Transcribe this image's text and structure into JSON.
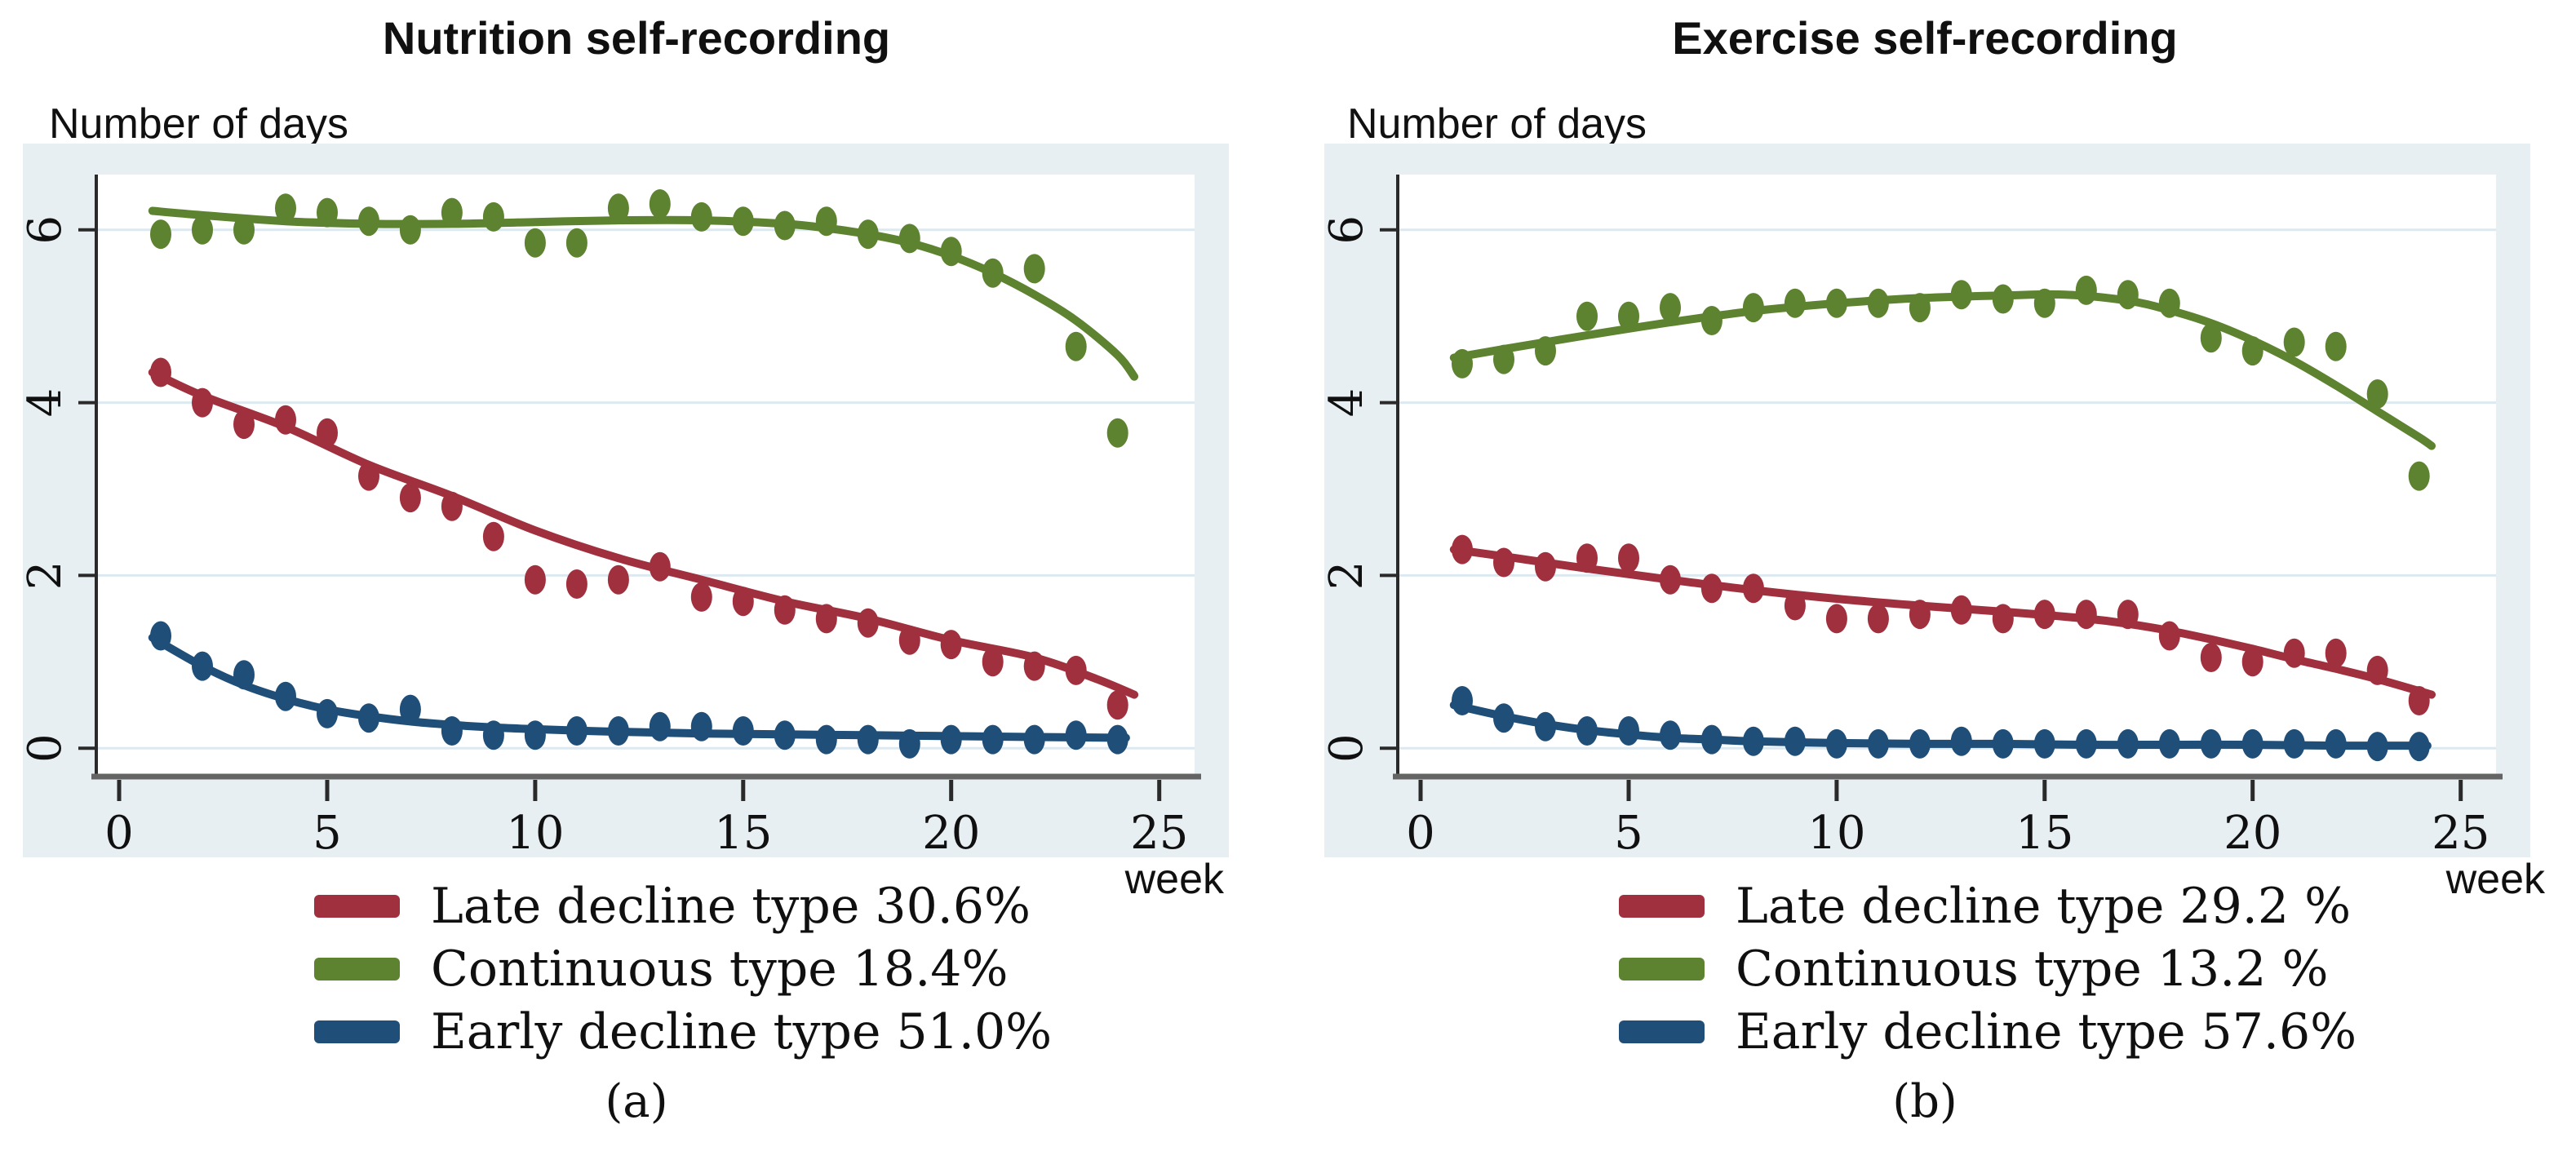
{
  "figure": {
    "panels": [
      {
        "title": "Nutrition self-recording",
        "y_axis_title": "Number of days",
        "x_axis_title": "week",
        "caption": "(a)",
        "legend": [
          {
            "series": "late_decline",
            "label": "Late decline type 30.6%"
          },
          {
            "series": "continuous",
            "label": "Continuous type 18.4%"
          },
          {
            "series": "early_decline",
            "label": "Early decline type 51.0%"
          }
        ]
      },
      {
        "title": "Exercise self-recording",
        "y_axis_title": "Number of days",
        "x_axis_title": "week",
        "caption": "(b)",
        "legend": [
          {
            "series": "late_decline",
            "label": "Late decline type 29.2 %"
          },
          {
            "series": "continuous",
            "label": "Continuous type 13.2 %"
          },
          {
            "series": "early_decline",
            "label": "Early decline type 57.6%"
          }
        ]
      }
    ],
    "colors": {
      "late_decline": "#a1303e",
      "continuous": "#5d8230",
      "early_decline": "#1f4e78",
      "panel_bg": "#e8eff3",
      "plot_bg": "#ffffff",
      "grid": "#dde9f0",
      "axis": "#2a2a2a",
      "x_axis_line": "#646464",
      "text": "#101010"
    }
  },
  "chart_data": [
    {
      "type": "scatter",
      "title": "Nutrition self-recording",
      "xlabel": "week",
      "ylabel": "Number of days",
      "x": [
        1,
        2,
        3,
        4,
        5,
        6,
        7,
        8,
        9,
        10,
        11,
        12,
        13,
        14,
        15,
        16,
        17,
        18,
        19,
        20,
        21,
        22,
        23,
        24
      ],
      "x_ticks": [
        0,
        5,
        10,
        15,
        20,
        25
      ],
      "y_ticks": [
        0,
        2,
        4,
        6
      ],
      "xlim": [
        -0.55,
        25.85
      ],
      "ylim": [
        -0.3,
        6.64
      ],
      "grid": true,
      "legend_position": "bottom",
      "series": [
        {
          "name": "Late decline type",
          "share": "30.6%",
          "color_key": "late_decline",
          "values": [
            4.35,
            4.0,
            3.75,
            3.8,
            3.65,
            3.15,
            2.9,
            2.8,
            2.45,
            1.95,
            1.9,
            1.95,
            2.1,
            1.75,
            1.7,
            1.6,
            1.5,
            1.45,
            1.25,
            1.2,
            1.0,
            0.95,
            0.9,
            0.5
          ],
          "trend": [
            [
              0.8,
              4.35
            ],
            [
              2,
              4.08
            ],
            [
              4,
              3.72
            ],
            [
              6,
              3.28
            ],
            [
              8,
              2.92
            ],
            [
              10,
              2.52
            ],
            [
              12,
              2.2
            ],
            [
              14,
              1.95
            ],
            [
              16,
              1.7
            ],
            [
              18,
              1.5
            ],
            [
              20,
              1.25
            ],
            [
              22,
              1.05
            ],
            [
              23.5,
              0.8
            ],
            [
              24.4,
              0.62
            ]
          ]
        },
        {
          "name": "Continuous type",
          "share": "18.4%",
          "color_key": "continuous",
          "values": [
            5.95,
            6.0,
            6.0,
            6.25,
            6.2,
            6.1,
            6.0,
            6.2,
            6.15,
            5.85,
            5.85,
            6.25,
            6.3,
            6.15,
            6.1,
            6.05,
            6.1,
            5.95,
            5.9,
            5.75,
            5.5,
            5.55,
            4.65,
            3.65
          ],
          "trend": [
            [
              0.8,
              6.22
            ],
            [
              2,
              6.17
            ],
            [
              4,
              6.1
            ],
            [
              6,
              6.07
            ],
            [
              8,
              6.07
            ],
            [
              10,
              6.09
            ],
            [
              12,
              6.11
            ],
            [
              14,
              6.11
            ],
            [
              16,
              6.07
            ],
            [
              17,
              6.02
            ],
            [
              18,
              5.95
            ],
            [
              19,
              5.85
            ],
            [
              20,
              5.7
            ],
            [
              21,
              5.5
            ],
            [
              22,
              5.25
            ],
            [
              23,
              4.95
            ],
            [
              24,
              4.55
            ],
            [
              24.4,
              4.3
            ]
          ]
        },
        {
          "name": "Early decline type",
          "share": "51.0%",
          "color_key": "early_decline",
          "values": [
            1.3,
            0.95,
            0.85,
            0.6,
            0.4,
            0.35,
            0.45,
            0.2,
            0.15,
            0.15,
            0.2,
            0.2,
            0.25,
            0.25,
            0.2,
            0.15,
            0.1,
            0.1,
            0.05,
            0.1,
            0.1,
            0.1,
            0.15,
            0.1
          ],
          "trend": [
            [
              0.8,
              1.28
            ],
            [
              2,
              0.95
            ],
            [
              3,
              0.73
            ],
            [
              4,
              0.57
            ],
            [
              5,
              0.45
            ],
            [
              6,
              0.37
            ],
            [
              7,
              0.31
            ],
            [
              8,
              0.27
            ],
            [
              9,
              0.24
            ],
            [
              10,
              0.22
            ],
            [
              12,
              0.19
            ],
            [
              14,
              0.17
            ],
            [
              16,
              0.16
            ],
            [
              18,
              0.15
            ],
            [
              20,
              0.14
            ],
            [
              22,
              0.13
            ],
            [
              24.2,
              0.12
            ]
          ]
        }
      ]
    },
    {
      "type": "scatter",
      "title": "Exercise self-recording",
      "xlabel": "week",
      "ylabel": "Number of days",
      "x": [
        1,
        2,
        3,
        4,
        5,
        6,
        7,
        8,
        9,
        10,
        11,
        12,
        13,
        14,
        15,
        16,
        17,
        18,
        19,
        20,
        21,
        22,
        23,
        24
      ],
      "x_ticks": [
        0,
        5,
        10,
        15,
        20,
        25
      ],
      "y_ticks": [
        0,
        2,
        4,
        6
      ],
      "xlim": [
        -0.55,
        25.85
      ],
      "ylim": [
        -0.3,
        6.64
      ],
      "grid": true,
      "legend_position": "bottom",
      "series": [
        {
          "name": "Late decline type",
          "share": "29.2 %",
          "color_key": "late_decline",
          "values": [
            2.3,
            2.15,
            2.1,
            2.2,
            2.2,
            1.95,
            1.85,
            1.85,
            1.65,
            1.5,
            1.5,
            1.55,
            1.6,
            1.5,
            1.55,
            1.55,
            1.55,
            1.3,
            1.05,
            1.0,
            1.1,
            1.1,
            0.9,
            0.55
          ],
          "trend": [
            [
              0.8,
              2.3
            ],
            [
              2,
              2.22
            ],
            [
              4,
              2.08
            ],
            [
              6,
              1.95
            ],
            [
              8,
              1.83
            ],
            [
              10,
              1.73
            ],
            [
              12,
              1.65
            ],
            [
              14,
              1.58
            ],
            [
              16,
              1.5
            ],
            [
              17,
              1.44
            ],
            [
              18,
              1.36
            ],
            [
              19,
              1.26
            ],
            [
              20,
              1.15
            ],
            [
              21,
              1.03
            ],
            [
              22,
              0.92
            ],
            [
              23,
              0.8
            ],
            [
              24.3,
              0.62
            ]
          ]
        },
        {
          "name": "Continuous type",
          "share": "13.2 %",
          "color_key": "continuous",
          "values": [
            4.45,
            4.5,
            4.6,
            5.0,
            5.0,
            5.1,
            4.95,
            5.1,
            5.15,
            5.15,
            5.15,
            5.1,
            5.25,
            5.2,
            5.15,
            5.3,
            5.25,
            5.15,
            4.75,
            4.6,
            4.7,
            4.65,
            4.1,
            3.15
          ],
          "trend": [
            [
              0.8,
              4.52
            ],
            [
              2,
              4.62
            ],
            [
              4,
              4.78
            ],
            [
              6,
              4.93
            ],
            [
              8,
              5.06
            ],
            [
              10,
              5.15
            ],
            [
              12,
              5.21
            ],
            [
              14,
              5.24
            ],
            [
              15.5,
              5.25
            ],
            [
              17,
              5.18
            ],
            [
              18,
              5.07
            ],
            [
              19,
              4.92
            ],
            [
              20,
              4.72
            ],
            [
              21,
              4.48
            ],
            [
              22,
              4.2
            ],
            [
              23,
              3.9
            ],
            [
              24,
              3.6
            ],
            [
              24.3,
              3.5
            ]
          ]
        },
        {
          "name": "Early decline type",
          "share": "57.6%",
          "color_key": "early_decline",
          "values": [
            0.55,
            0.35,
            0.25,
            0.2,
            0.2,
            0.15,
            0.1,
            0.08,
            0.08,
            0.05,
            0.05,
            0.05,
            0.08,
            0.05,
            0.05,
            0.05,
            0.05,
            0.05,
            0.05,
            0.05,
            0.05,
            0.05,
            0.02,
            0.02
          ],
          "trend": [
            [
              0.8,
              0.5
            ],
            [
              2,
              0.37
            ],
            [
              3,
              0.28
            ],
            [
              4,
              0.21
            ],
            [
              5,
              0.16
            ],
            [
              6,
              0.12
            ],
            [
              7,
              0.1
            ],
            [
              8,
              0.08
            ],
            [
              10,
              0.06
            ],
            [
              12,
              0.05
            ],
            [
              14,
              0.05
            ],
            [
              16,
              0.04
            ],
            [
              18,
              0.04
            ],
            [
              20,
              0.04
            ],
            [
              22,
              0.03
            ],
            [
              24.2,
              0.03
            ]
          ]
        }
      ]
    }
  ]
}
